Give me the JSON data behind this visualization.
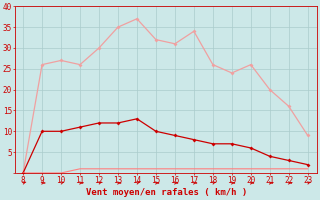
{
  "x": [
    8,
    9,
    10,
    11,
    12,
    13,
    14,
    15,
    16,
    17,
    18,
    19,
    20,
    21,
    22,
    23
  ],
  "rafales": [
    0,
    26,
    27,
    26,
    30,
    35,
    37,
    32,
    31,
    34,
    26,
    24,
    26,
    20,
    16,
    9
  ],
  "vent_moyen": [
    0,
    10,
    10,
    11,
    12,
    12,
    13,
    10,
    9,
    8,
    7,
    7,
    6,
    4,
    3,
    2
  ],
  "vent_min": [
    0,
    0,
    0,
    1,
    1,
    1,
    1,
    1,
    1,
    1,
    1,
    1,
    1,
    1,
    1,
    1
  ],
  "color_rafales": "#f0a0a0",
  "color_vent_moyen": "#cc0000",
  "color_vent_min": "#ff8080",
  "bg_color": "#cce8e8",
  "grid_color": "#aacccc",
  "xlabel": "Vent moyen/en rafales ( km/h )",
  "xlabel_color": "#cc0000",
  "tick_color": "#cc0000",
  "ylim": [
    0,
    40
  ],
  "yticks": [
    0,
    5,
    10,
    15,
    20,
    25,
    30,
    35,
    40
  ]
}
